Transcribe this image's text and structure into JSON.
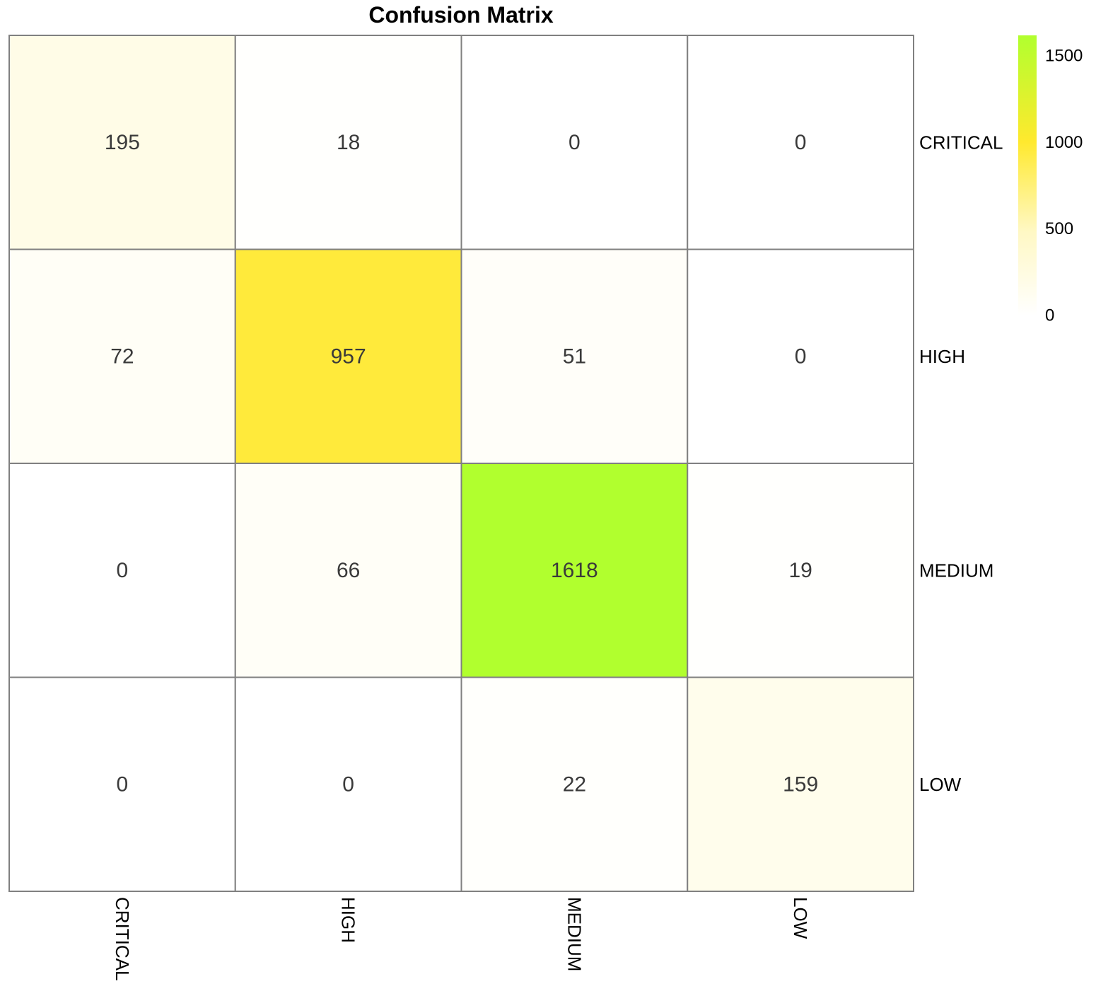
{
  "chart_data": {
    "type": "heatmap",
    "title": "Confusion Matrix",
    "row_labels": [
      "CRITICAL",
      "HIGH",
      "MEDIUM",
      "LOW"
    ],
    "col_labels": [
      "CRITICAL",
      "HIGH",
      "MEDIUM",
      "LOW"
    ],
    "values": [
      [
        195,
        18,
        0,
        0
      ],
      [
        72,
        957,
        51,
        0
      ],
      [
        0,
        66,
        1618,
        19
      ],
      [
        0,
        0,
        22,
        159
      ]
    ],
    "colorbar": {
      "range": [
        0,
        1618
      ],
      "ticks": [
        0,
        500,
        1000,
        1500
      ],
      "colors": [
        "#ffffff",
        "#fff8c4",
        "#ffe92e",
        "#b1ff2e"
      ]
    },
    "grid_color": "#808080",
    "text_color": "#3a3a3a"
  }
}
